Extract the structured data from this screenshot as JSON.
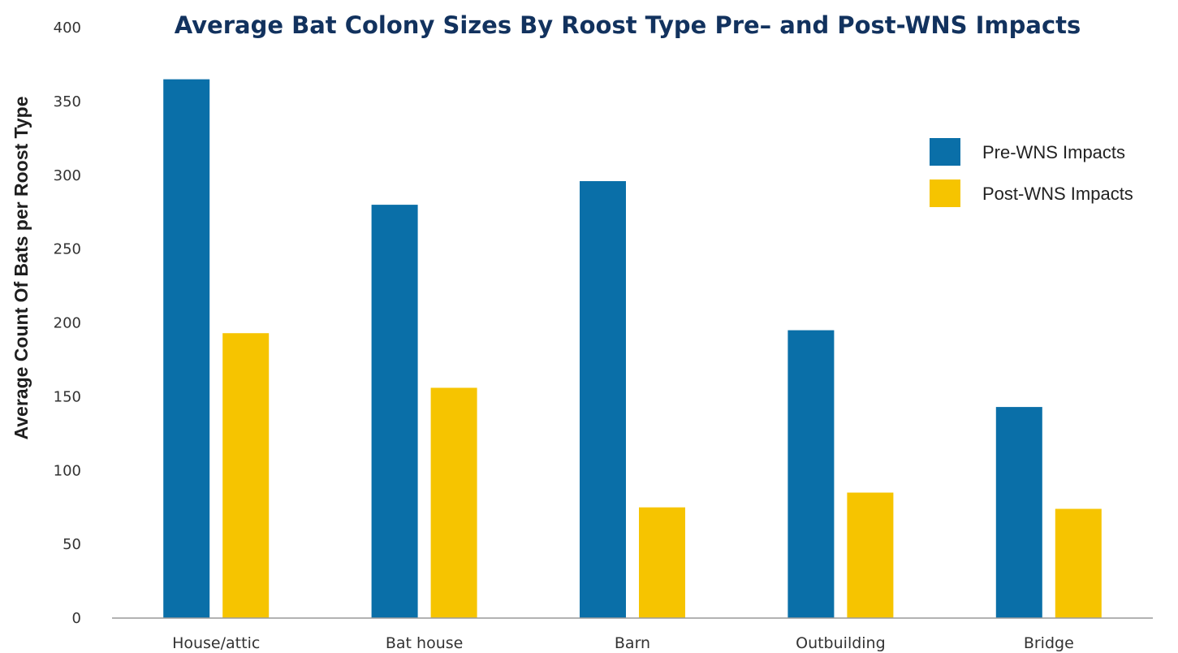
{
  "colors": {
    "pre": "#0a6fa8",
    "post": "#f6c400",
    "axis": "#9a9a9a",
    "title": "#12325e"
  },
  "chart_data": {
    "type": "bar",
    "title": "Average Bat Colony Sizes By Roost Type Pre– and Post-WNS Impacts",
    "xlabel": "",
    "ylabel": "Average Count Of Bats per Roost Type",
    "ylim": [
      0,
      400
    ],
    "yticks": [
      "0",
      "50",
      "100",
      "150",
      "200",
      "250",
      "300",
      "350",
      "400"
    ],
    "categories": [
      "House/attic",
      "Bat house",
      "Barn",
      "Outbuilding",
      "Bridge"
    ],
    "series": [
      {
        "name": "Pre-WNS Impacts",
        "values": [
          365,
          280,
          296,
          195,
          143
        ]
      },
      {
        "name": "Post-WNS Impacts",
        "values": [
          193,
          156,
          75,
          85,
          74
        ]
      }
    ],
    "legend_position": "right",
    "grid": false
  }
}
